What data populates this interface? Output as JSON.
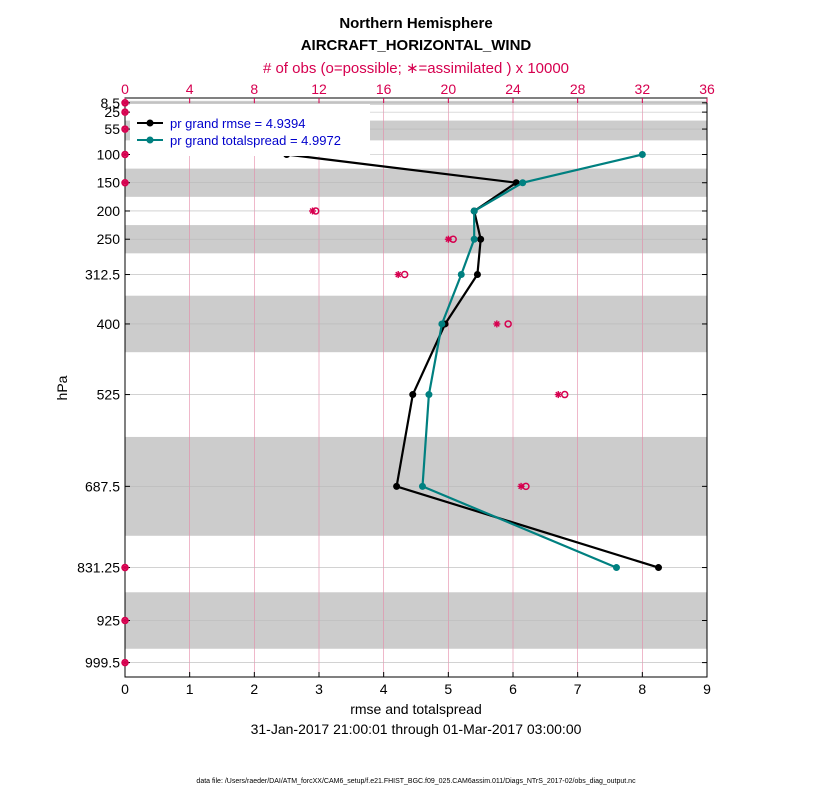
{
  "chart_data": {
    "type": "line",
    "title": "Northern Hemisphere",
    "subtitle": "AIRCRAFT_HORIZONTAL_WIND",
    "top_axis_label": "# of obs (o=possible; ∗=assimilated ) x 10000",
    "top_axis_ticks": [
      0,
      4,
      8,
      12,
      16,
      20,
      24,
      28,
      32,
      36
    ],
    "top_xlim": [
      0,
      36
    ],
    "xlabel": "rmse and totalspread",
    "xlabel2": "31-Jan-2017 21:00:01 through 01-Mar-2017 03:00:00",
    "ylabel": "hPa",
    "xlim": [
      0,
      9
    ],
    "x_ticks": [
      0,
      1,
      2,
      3,
      4,
      5,
      6,
      7,
      8,
      9
    ],
    "levels": [
      "8.5",
      "25",
      "55",
      "100",
      "150",
      "200",
      "250",
      "312.5",
      "400",
      "525",
      "687.5",
      "831.25",
      "925",
      "999.5"
    ],
    "level_values": [
      8.5,
      25,
      55,
      100,
      150,
      200,
      250,
      312.5,
      400,
      525,
      687.5,
      831.25,
      925,
      999.5
    ],
    "layer_bands_hPa": [
      [
        5,
        12
      ],
      [
        40,
        75
      ],
      [
        125,
        175
      ],
      [
        225,
        275
      ],
      [
        350,
        450
      ],
      [
        600,
        775
      ],
      [
        875,
        975
      ]
    ],
    "series": [
      {
        "name": "rmse",
        "legend": "pr grand rmse = 4.9394",
        "color": "#000000",
        "points": [
          [
            2.5,
            100
          ],
          [
            6.05,
            150
          ],
          [
            5.4,
            200
          ],
          [
            5.5,
            250
          ],
          [
            5.45,
            312.5
          ],
          [
            4.95,
            400
          ],
          [
            4.45,
            525
          ],
          [
            4.2,
            687.5
          ],
          [
            8.25,
            831.25
          ]
        ]
      },
      {
        "name": "totalspread",
        "legend": "pr grand totalspread = 4.9972",
        "color": "#008080",
        "points": [
          [
            8.0,
            100
          ],
          [
            6.15,
            150
          ],
          [
            5.4,
            200
          ],
          [
            5.4,
            250
          ],
          [
            5.2,
            312.5
          ],
          [
            4.9,
            400
          ],
          [
            4.7,
            525
          ],
          [
            4.6,
            687.5
          ],
          [
            7.6,
            831.25
          ]
        ]
      }
    ],
    "obs_color": "#d6004f",
    "obs_possible_x10000": [
      [
        0,
        8.5
      ],
      [
        0,
        25
      ],
      [
        0,
        55
      ],
      [
        0,
        100
      ],
      [
        0,
        150
      ],
      [
        11.8,
        200
      ],
      [
        20.3,
        250
      ],
      [
        17.3,
        312.5
      ],
      [
        23.7,
        400
      ],
      [
        27.2,
        525
      ],
      [
        24.8,
        687.5
      ],
      [
        0,
        831.25
      ],
      [
        0,
        925
      ],
      [
        0,
        999.5
      ]
    ],
    "obs_assimilated_x10000": [
      [
        0,
        8.5
      ],
      [
        0,
        25
      ],
      [
        0,
        55
      ],
      [
        0,
        100
      ],
      [
        0,
        150
      ],
      [
        11.6,
        200
      ],
      [
        20.0,
        250
      ],
      [
        16.9,
        312.5
      ],
      [
        23.0,
        400
      ],
      [
        26.8,
        525
      ],
      [
        24.5,
        687.5
      ],
      [
        0,
        831.25
      ],
      [
        0,
        925
      ],
      [
        0,
        999.5
      ]
    ]
  },
  "footer": "data file: /Users/raeder/DAI/ATM_forcXX/CAM6_setup/f.e21.FHIST_BGC.f09_025.CAM6assim.011/Diags_NTrS_2017-02/obs_diag_output.nc"
}
